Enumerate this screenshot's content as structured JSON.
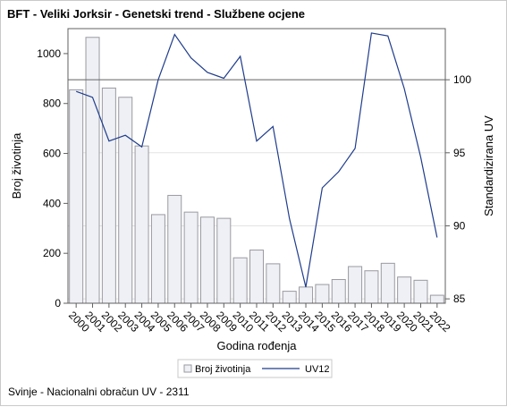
{
  "title": "BFT - Veliki Jorksir - Genetski trend - Službene ocjene",
  "footnote": "Svinje - Nacionalni obračun UV - 2311",
  "colors": {
    "bar_fill": "#eef0f5",
    "bar_stroke": "#9a9aa0",
    "line": "#1f3c8c",
    "reference_line": "#666666",
    "grid": "#e3e3e3"
  },
  "chart_data": {
    "type": "bar",
    "title": "BFT - Veliki Jorksir - Genetski trend - Službene ocjene",
    "xlabel": "Godina rođenja",
    "ylabel": "Broj životinja",
    "y2label": "Standardizirana UV",
    "categories": [
      "2000",
      "2001",
      "2002",
      "2003",
      "2004",
      "2005",
      "2006",
      "2007",
      "2008",
      "2009",
      "2010",
      "2011",
      "2012",
      "2013",
      "2014",
      "2015",
      "2016",
      "2017",
      "2018",
      "2019",
      "2020",
      "2021",
      "2022"
    ],
    "series": [
      {
        "name": "Broj životinja",
        "type": "bar",
        "axis": "left",
        "values": [
          855,
          1065,
          862,
          825,
          630,
          355,
          432,
          365,
          345,
          340,
          182,
          213,
          158,
          48,
          65,
          75,
          95,
          147,
          130,
          160,
          105,
          92,
          32
        ]
      },
      {
        "name": "UV12",
        "type": "line",
        "axis": "right",
        "values": [
          99.2,
          98.8,
          95.8,
          96.2,
          95.4,
          100.0,
          103.1,
          101.5,
          100.5,
          100.1,
          101.6,
          95.8,
          96.8,
          90.5,
          85.8,
          92.6,
          93.7,
          95.3,
          103.2,
          103.0,
          99.4,
          94.7,
          89.2
        ]
      }
    ],
    "ylim": [
      0,
      1100
    ],
    "y_ticks": [
      "0",
      "200",
      "400",
      "600",
      "800",
      "1000"
    ],
    "y2lim": [
      84.7,
      103.5
    ],
    "y2_ticks": [
      "85",
      "90",
      "95",
      "100"
    ],
    "reference_line_y2": 100,
    "legend": [
      "Broj životinja",
      "UV12"
    ],
    "legend_position": "bottom",
    "grid": true
  }
}
